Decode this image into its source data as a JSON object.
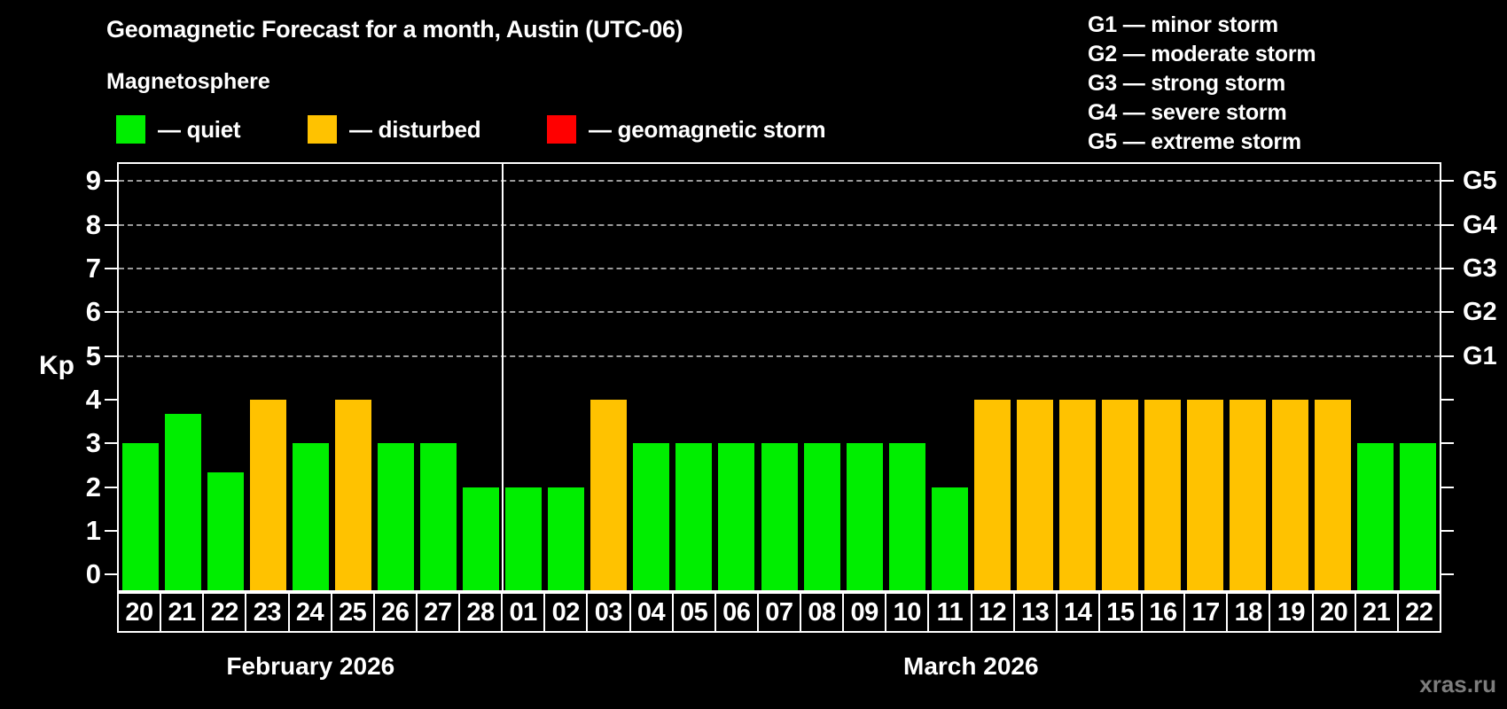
{
  "header": {
    "title": "Geomagnetic Forecast for a month, Austin (UTC-06)",
    "subtitle": "Magnetosphere",
    "legend": [
      {
        "id": "quiet",
        "label": "— quiet"
      },
      {
        "id": "disturbed",
        "label": "— disturbed"
      },
      {
        "id": "storm",
        "label": "— geomagnetic storm"
      }
    ],
    "g_scale": [
      "G1 — minor storm",
      "G2 — moderate storm",
      "G3 — strong storm",
      "G4 — severe storm",
      "G5 — extreme storm"
    ]
  },
  "watermark": "xras.ru",
  "chart_data": {
    "type": "bar",
    "title": "Geomagnetic Forecast for a month, Austin (UTC-06)",
    "ylabel": "Kp",
    "ylim": [
      0,
      9
    ],
    "y_ticks": [
      0,
      1,
      2,
      3,
      4,
      5,
      6,
      7,
      8,
      9
    ],
    "grid": "horizontal dashed lines at storm levels only",
    "grid_levels": [
      5,
      6,
      7,
      8,
      9
    ],
    "grid_color": "#9b9b9b",
    "legend_position": "top-left",
    "right_axis": [
      {
        "kp": 5,
        "label": "G1"
      },
      {
        "kp": 6,
        "label": "G2"
      },
      {
        "kp": 7,
        "label": "G3"
      },
      {
        "kp": 8,
        "label": "G4"
      },
      {
        "kp": 9,
        "label": "G5"
      }
    ],
    "months": [
      {
        "label": "February 2026",
        "days": 9
      },
      {
        "label": "March 2026",
        "days": 22
      }
    ],
    "categories": [
      "20",
      "21",
      "22",
      "23",
      "24",
      "25",
      "26",
      "27",
      "28",
      "01",
      "02",
      "03",
      "04",
      "05",
      "06",
      "07",
      "08",
      "09",
      "10",
      "11",
      "12",
      "13",
      "14",
      "15",
      "16",
      "17",
      "18",
      "19",
      "20",
      "21",
      "22"
    ],
    "values": [
      3,
      3.67,
      2.33,
      4,
      3,
      4,
      3,
      3,
      2,
      2,
      2,
      4,
      3,
      3,
      3,
      3,
      3,
      3,
      3,
      2,
      4,
      4,
      4,
      4,
      4,
      4,
      4,
      4,
      4,
      3,
      3
    ],
    "statuses": [
      "quiet",
      "quiet",
      "quiet",
      "disturbed",
      "quiet",
      "disturbed",
      "quiet",
      "quiet",
      "quiet",
      "quiet",
      "quiet",
      "disturbed",
      "quiet",
      "quiet",
      "quiet",
      "quiet",
      "quiet",
      "quiet",
      "quiet",
      "quiet",
      "disturbed",
      "disturbed",
      "disturbed",
      "disturbed",
      "disturbed",
      "disturbed",
      "disturbed",
      "disturbed",
      "disturbed",
      "quiet",
      "quiet"
    ],
    "colors": {
      "quiet": "#00ee00",
      "disturbed": "#ffc200",
      "storm": "#ff0000"
    }
  }
}
